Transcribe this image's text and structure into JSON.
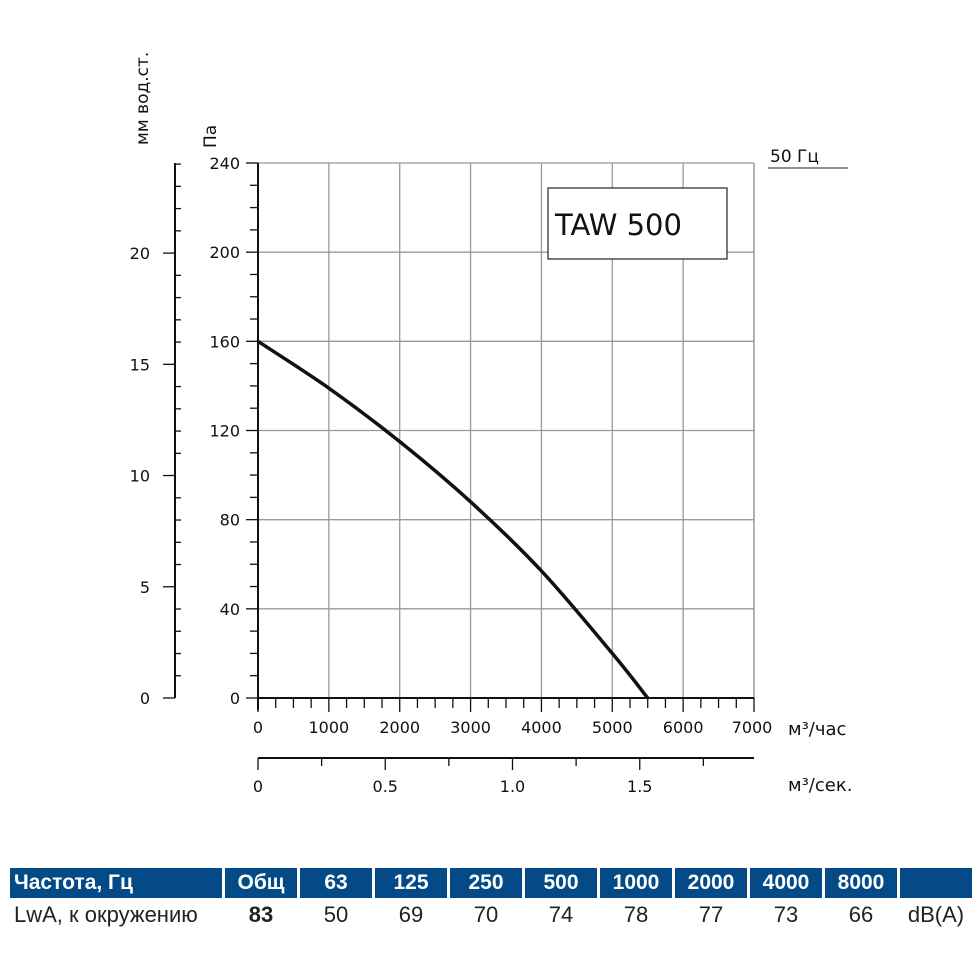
{
  "chart_data": {
    "type": "line",
    "title": "TAW 500",
    "frequency_label": "50 Гц",
    "xlabel": "м³/час",
    "xlabel2": "м³/сек.",
    "ylabel": "Па",
    "ylabel2": "мм вод.ст.",
    "xlim": [
      0,
      7000
    ],
    "ylim": [
      0,
      240
    ],
    "x2lim": [
      0,
      1.944
    ],
    "y2lim": [
      0,
      24.5
    ],
    "xticks": [
      0,
      1000,
      2000,
      3000,
      4000,
      5000,
      6000,
      7000
    ],
    "yticks": [
      0,
      40,
      80,
      120,
      160,
      200,
      240
    ],
    "x2ticks": [
      "0",
      "0.5",
      "1.0",
      "1.5"
    ],
    "y2ticks": [
      0,
      5,
      10,
      15,
      20
    ],
    "grid": true,
    "series": [
      {
        "name": "TAW 500",
        "x": [
          0,
          1000,
          2000,
          3000,
          4000,
          5000,
          5500
        ],
        "y": [
          160,
          139,
          115,
          88,
          57,
          20,
          0
        ]
      }
    ]
  },
  "table": {
    "header": [
      "Частота, Гц",
      "Общ",
      "63",
      "125",
      "250",
      "500",
      "1000",
      "2000",
      "4000",
      "8000",
      ""
    ],
    "row": [
      "LwA, к окружению",
      "83",
      "50",
      "69",
      "70",
      "74",
      "78",
      "77",
      "73",
      "66",
      "dB(A)"
    ]
  }
}
